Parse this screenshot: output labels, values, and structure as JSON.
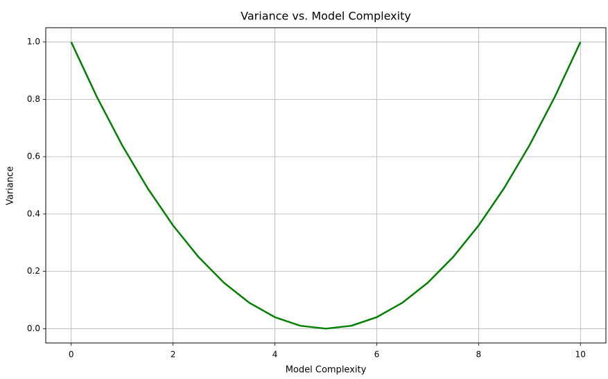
{
  "chart_data": {
    "type": "line",
    "title": "Variance vs. Model Complexity",
    "x_label": "Model Complexity",
    "y_label": "Variance",
    "x": [
      0,
      0.5,
      1,
      1.5,
      2,
      2.5,
      3,
      3.5,
      4,
      4.5,
      5,
      5.5,
      6,
      6.5,
      7,
      7.5,
      8,
      8.5,
      9,
      9.5,
      10
    ],
    "values": [
      1,
      0.81,
      0.64,
      0.49,
      0.36,
      0.25,
      0.16,
      0.09,
      0.04,
      0.01,
      0,
      0.01,
      0.04,
      0.09,
      0.16,
      0.25,
      0.36,
      0.49,
      0.64,
      0.81,
      1
    ],
    "color": "#008000",
    "xlim": [
      -0.5,
      10.5
    ],
    "xticks": [
      0,
      2,
      4,
      6,
      8,
      10
    ],
    "ylim": [
      -0.05,
      1.05
    ],
    "yticks": [
      {
        "value": 0,
        "label": "0.0"
      },
      0.2,
      0.4,
      0.6,
      0.8,
      {
        "value": 1,
        "label": "1.0"
      }
    ],
    "grid": true
  }
}
